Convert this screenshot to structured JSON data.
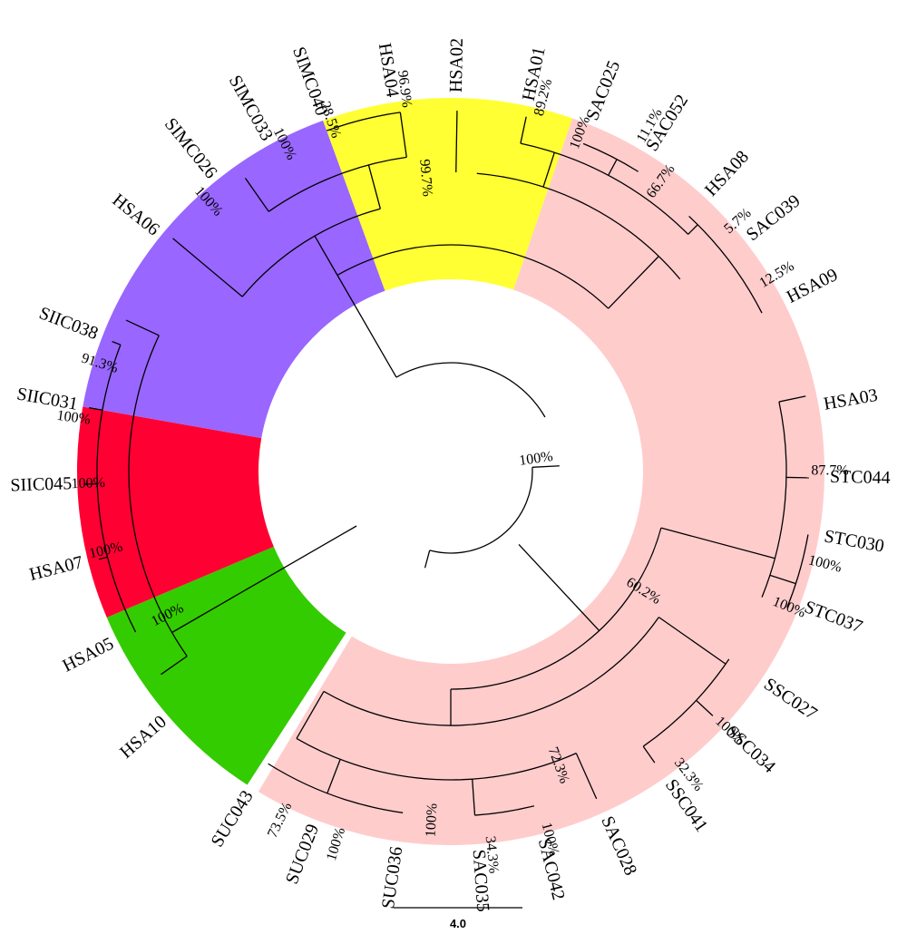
{
  "tree": {
    "clades": [
      {
        "name": "pink-clade",
        "color": "#FFCCCC",
        "start": 19,
        "end": 211
      },
      {
        "name": "green-clade",
        "color": "#33CC00",
        "start": 213,
        "end": 247
      },
      {
        "name": "red-clade",
        "color": "#FF0033",
        "start": 247,
        "end": 280
      },
      {
        "name": "purple-clade",
        "color": "#9966FF",
        "start": 280,
        "end": 340
      },
      {
        "name": "yellow-clade",
        "color": "#FFFF33",
        "start": 340,
        "end": 379
      }
    ],
    "leaves": [
      {
        "id": "HSA01",
        "label": "HSA01",
        "angle": 12
      },
      {
        "id": "SAC025",
        "label": "SAC025",
        "angle": 22
      },
      {
        "id": "SAC052",
        "label": "SAC052",
        "angle": 32
      },
      {
        "id": "HSA08",
        "label": "HSA08",
        "angle": 43
      },
      {
        "id": "SAC039",
        "label": "SAC039",
        "angle": 52
      },
      {
        "id": "HSA09",
        "label": "HSA09",
        "angle": 63
      },
      {
        "id": "HSA03",
        "label": "HSA03",
        "angle": 80
      },
      {
        "id": "STC044",
        "label": "STC044",
        "angle": 91
      },
      {
        "id": "STC030",
        "label": "STC030",
        "angle": 100
      },
      {
        "id": "STC037",
        "label": "STC037",
        "angle": 111
      },
      {
        "id": "SSC027",
        "label": "SSC027",
        "angle": 124
      },
      {
        "id": "SSC034",
        "label": "SSC034",
        "angle": 133
      },
      {
        "id": "SSC041",
        "label": "SSC041",
        "angle": 145
      },
      {
        "id": "SAC028",
        "label": "SAC028",
        "angle": 156
      },
      {
        "id": "SAC042",
        "label": "SAC042",
        "angle": 166
      },
      {
        "id": "SAC035",
        "label": "SAC035",
        "angle": 176
      },
      {
        "id": "SUC036",
        "label": "SUC036",
        "angle": 188
      },
      {
        "id": "SUC029",
        "label": "SUC029",
        "angle": 201
      },
      {
        "id": "SUC043",
        "label": "SUC043",
        "angle": 212
      },
      {
        "id": "HSA10",
        "label": "HSA10",
        "angle": 229
      },
      {
        "id": "HSA05",
        "label": "HSA05",
        "angle": 243
      },
      {
        "id": "HSA07",
        "label": "HSA07",
        "angle": 256
      },
      {
        "id": "SIIC045",
        "label": "SIIC045",
        "angle": 268
      },
      {
        "id": "SIIC031",
        "label": "SIIC031",
        "angle": 280
      },
      {
        "id": "SIIC038",
        "label": "SIIC038",
        "angle": 291
      },
      {
        "id": "HSA06",
        "label": "HSA06",
        "angle": 309
      },
      {
        "id": "SIMC026",
        "label": "SIMC026",
        "angle": 321
      },
      {
        "id": "SIMC033",
        "label": "SIMC033",
        "angle": 331
      },
      {
        "id": "SIMC040",
        "label": "SIMC040",
        "angle": 340
      },
      {
        "id": "HSA04",
        "label": "HSA04",
        "angle": 351
      },
      {
        "id": "HSA02",
        "label": "HSA02",
        "angle": 1
      }
    ],
    "support_values": [
      {
        "id": "root",
        "label": "100%",
        "angle": 82,
        "r": 95
      },
      {
        "id": "pink-inner",
        "label": "99.7%",
        "angle": 355,
        "r": 325
      },
      {
        "id": "hsa01-clade",
        "label": "89.2%",
        "angle": 14,
        "r": 425
      },
      {
        "id": "sac025-052",
        "label": "11.1%",
        "angle": 30,
        "r": 440
      },
      {
        "id": "sac-group",
        "label": "100%",
        "angle": 21,
        "r": 400
      },
      {
        "id": "hsa08-group",
        "label": "66.7%",
        "angle": 36,
        "r": 395
      },
      {
        "id": "sac039-hsa08",
        "label": "5.7%",
        "angle": 49,
        "r": 420
      },
      {
        "id": "sac039-hsa09",
        "label": "12.5%",
        "angle": 59,
        "r": 420
      },
      {
        "id": "green-inner",
        "label": "87.7%",
        "angle": 90,
        "r": 418
      },
      {
        "id": "stc030-037",
        "label": "100%",
        "angle": 104,
        "r": 425
      },
      {
        "id": "stc-pair",
        "label": "100%",
        "angle": 112,
        "r": 402
      },
      {
        "id": "green-red",
        "label": "60.2%",
        "angle": 122,
        "r": 250
      },
      {
        "id": "ssc-pair",
        "label": "100%",
        "angle": 133,
        "r": 420
      },
      {
        "id": "ssc-group",
        "label": "32.3%",
        "angle": 142,
        "r": 425
      },
      {
        "id": "purple-inner",
        "label": "72.3%",
        "angle": 160,
        "r": 345
      },
      {
        "id": "sac-pair",
        "label": "100%",
        "angle": 165,
        "r": 420
      },
      {
        "id": "sac035-042",
        "label": "34.3%",
        "angle": 174,
        "r": 425
      },
      {
        "id": "purple-base",
        "label": "100%",
        "angle": 183,
        "r": 385
      },
      {
        "id": "suc-pair",
        "label": "100%",
        "angle": 197,
        "r": 430
      },
      {
        "id": "suc-group",
        "label": "73.5%",
        "angle": 206,
        "r": 428
      },
      {
        "id": "hsa05-group",
        "label": "100%",
        "angle": 243,
        "r": 350
      },
      {
        "id": "hsa07-group",
        "label": "100%",
        "angle": 257,
        "r": 390
      },
      {
        "id": "siic045-group",
        "label": "100%",
        "angle": 268,
        "r": 400
      },
      {
        "id": "siic031-group",
        "label": "100%",
        "angle": 278,
        "r": 420
      },
      {
        "id": "siic038-pair",
        "label": "91.3%",
        "angle": 287,
        "r": 405
      },
      {
        "id": "simc026-group",
        "label": "100%",
        "angle": 318,
        "r": 400
      },
      {
        "id": "simc033-group",
        "label": "100%",
        "angle": 333,
        "r": 405
      },
      {
        "id": "simc040-pair",
        "label": "28.5%",
        "angle": 341,
        "r": 410
      },
      {
        "id": "hsa04-pair",
        "label": "96.9%",
        "angle": 353,
        "r": 425
      }
    ],
    "scale_bar": {
      "label": "4.0"
    }
  }
}
